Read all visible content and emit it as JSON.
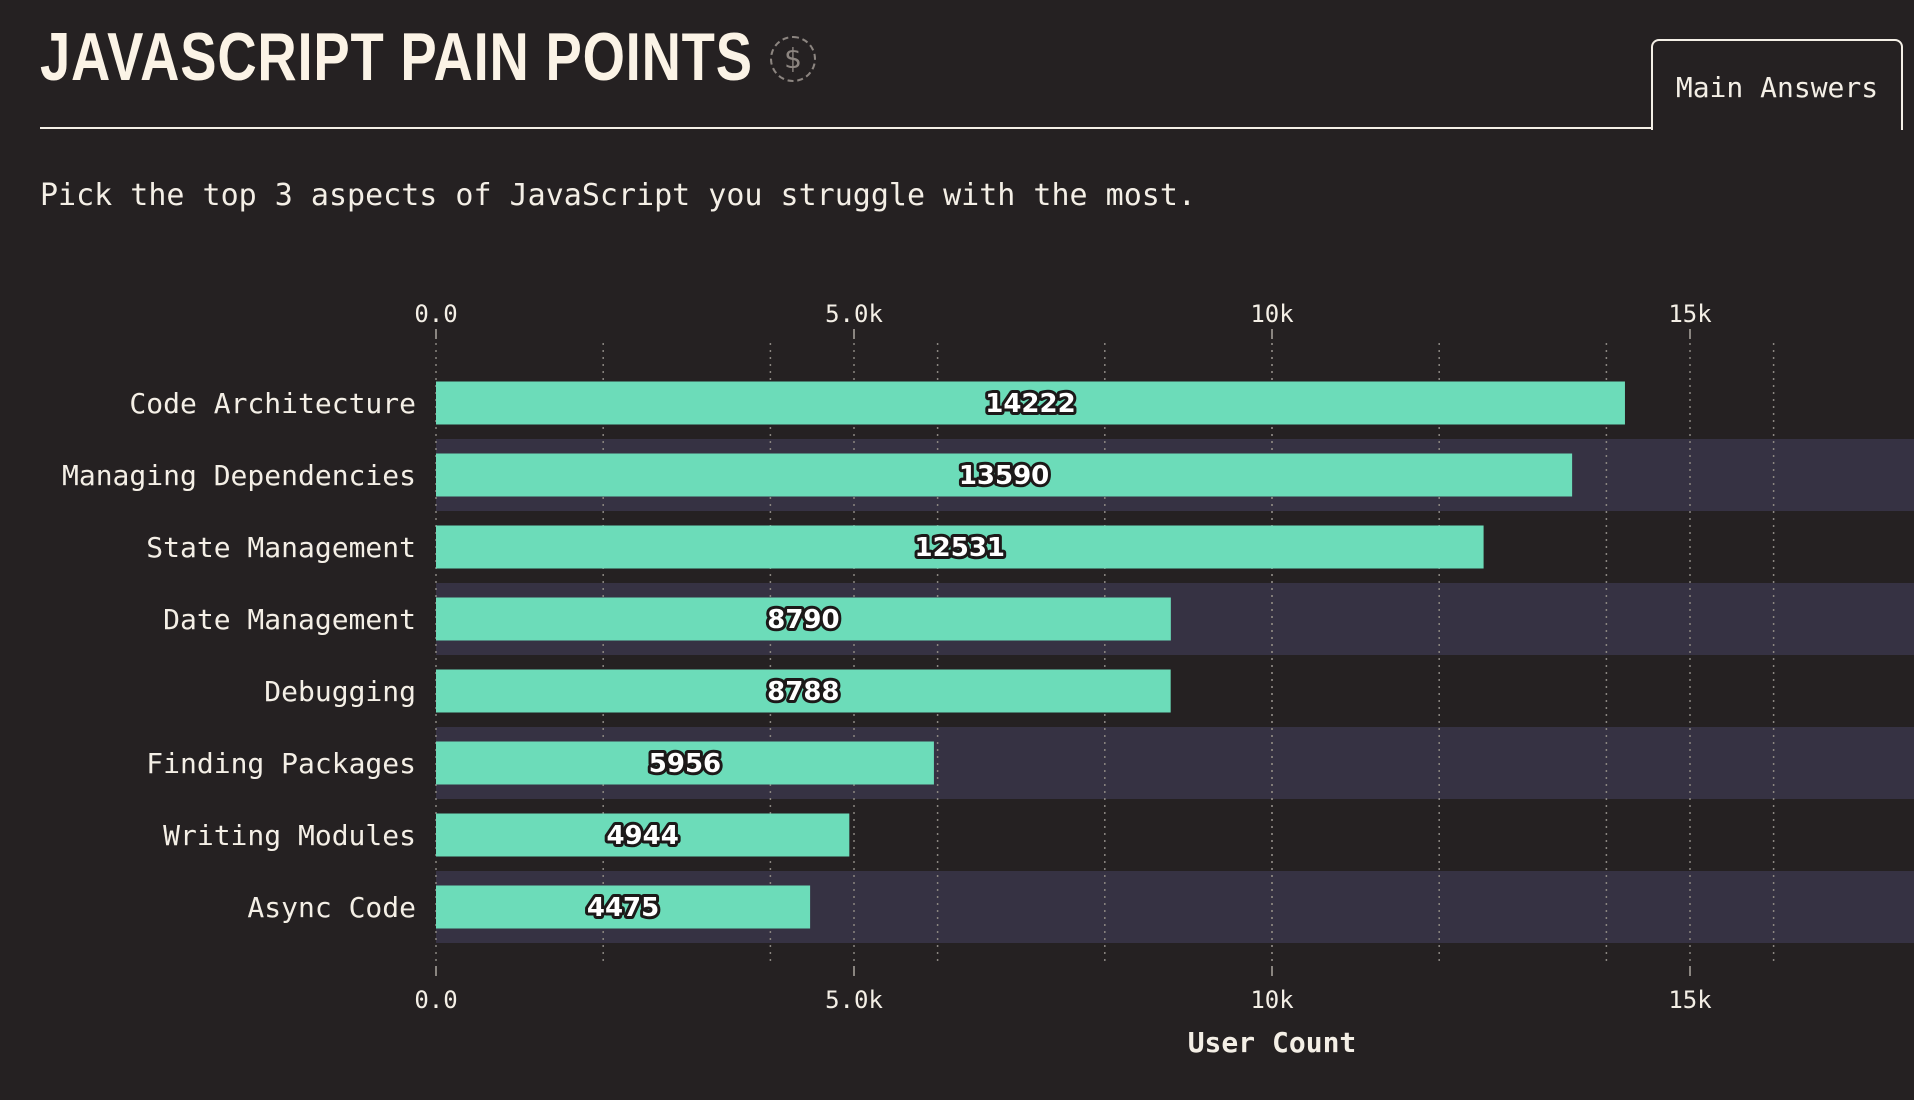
{
  "header": {
    "title": "JAVASCRIPT PAIN POINTS",
    "badge_symbol": "$",
    "tab_label": "Main Answers"
  },
  "question": "Pick the top 3 aspects of JavaScript you struggle with the most.",
  "colors": {
    "background": "#252122",
    "bar": "#6cdcb9",
    "band": "#363243",
    "text": "#f4efe6"
  },
  "chart_data": {
    "type": "bar",
    "orientation": "horizontal",
    "categories": [
      "Code Architecture",
      "Managing Dependencies",
      "State Management",
      "Date Management",
      "Debugging",
      "Finding Packages",
      "Writing Modules",
      "Async Code"
    ],
    "values": [
      14222,
      13590,
      12531,
      8790,
      8788,
      5956,
      4944,
      4475
    ],
    "value_labels": [
      "14222",
      "13590",
      "12531",
      "8790",
      "8788",
      "5956",
      "4944",
      "4475"
    ],
    "xlabel": "User Count",
    "xlim": [
      0,
      17500
    ],
    "x_ticks": [
      0,
      5000,
      10000,
      15000
    ],
    "x_tick_labels": [
      "0.0",
      "5.0k",
      "10k",
      "15k"
    ],
    "minor_grid_step": 2000,
    "grid": true
  }
}
